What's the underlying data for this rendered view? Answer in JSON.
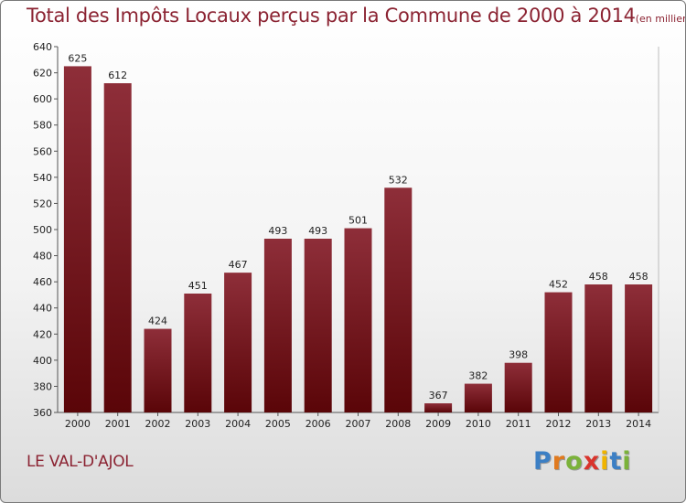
{
  "chart_data": {
    "type": "bar",
    "title": "Total des Impôts Locaux perçus par la Commune de 2000 à 2014",
    "unit_note": "(en milliers d'€)",
    "categories": [
      "2000",
      "2001",
      "2002",
      "2003",
      "2004",
      "2005",
      "2006",
      "2007",
      "2008",
      "2009",
      "2010",
      "2011",
      "2012",
      "2013",
      "2014"
    ],
    "values": [
      625,
      612,
      424,
      451,
      467,
      493,
      493,
      501,
      532,
      367,
      382,
      398,
      452,
      458,
      458
    ],
    "ylim": [
      360,
      640
    ],
    "yticks": [
      360,
      380,
      400,
      420,
      440,
      460,
      480,
      500,
      520,
      540,
      560,
      580,
      600,
      620,
      640
    ],
    "xlabel": "",
    "ylabel": "",
    "grid": false,
    "legend": "none"
  },
  "footer": {
    "commune": "LE VAL-D'AJOL",
    "brand_letters": [
      "P",
      "r",
      "o",
      "x",
      "i",
      "t",
      "i"
    ]
  },
  "colors": {
    "bar_top": "#8e2e39",
    "bar_bottom": "#5a0508",
    "title": "#8b2332",
    "axis": "#555555"
  }
}
